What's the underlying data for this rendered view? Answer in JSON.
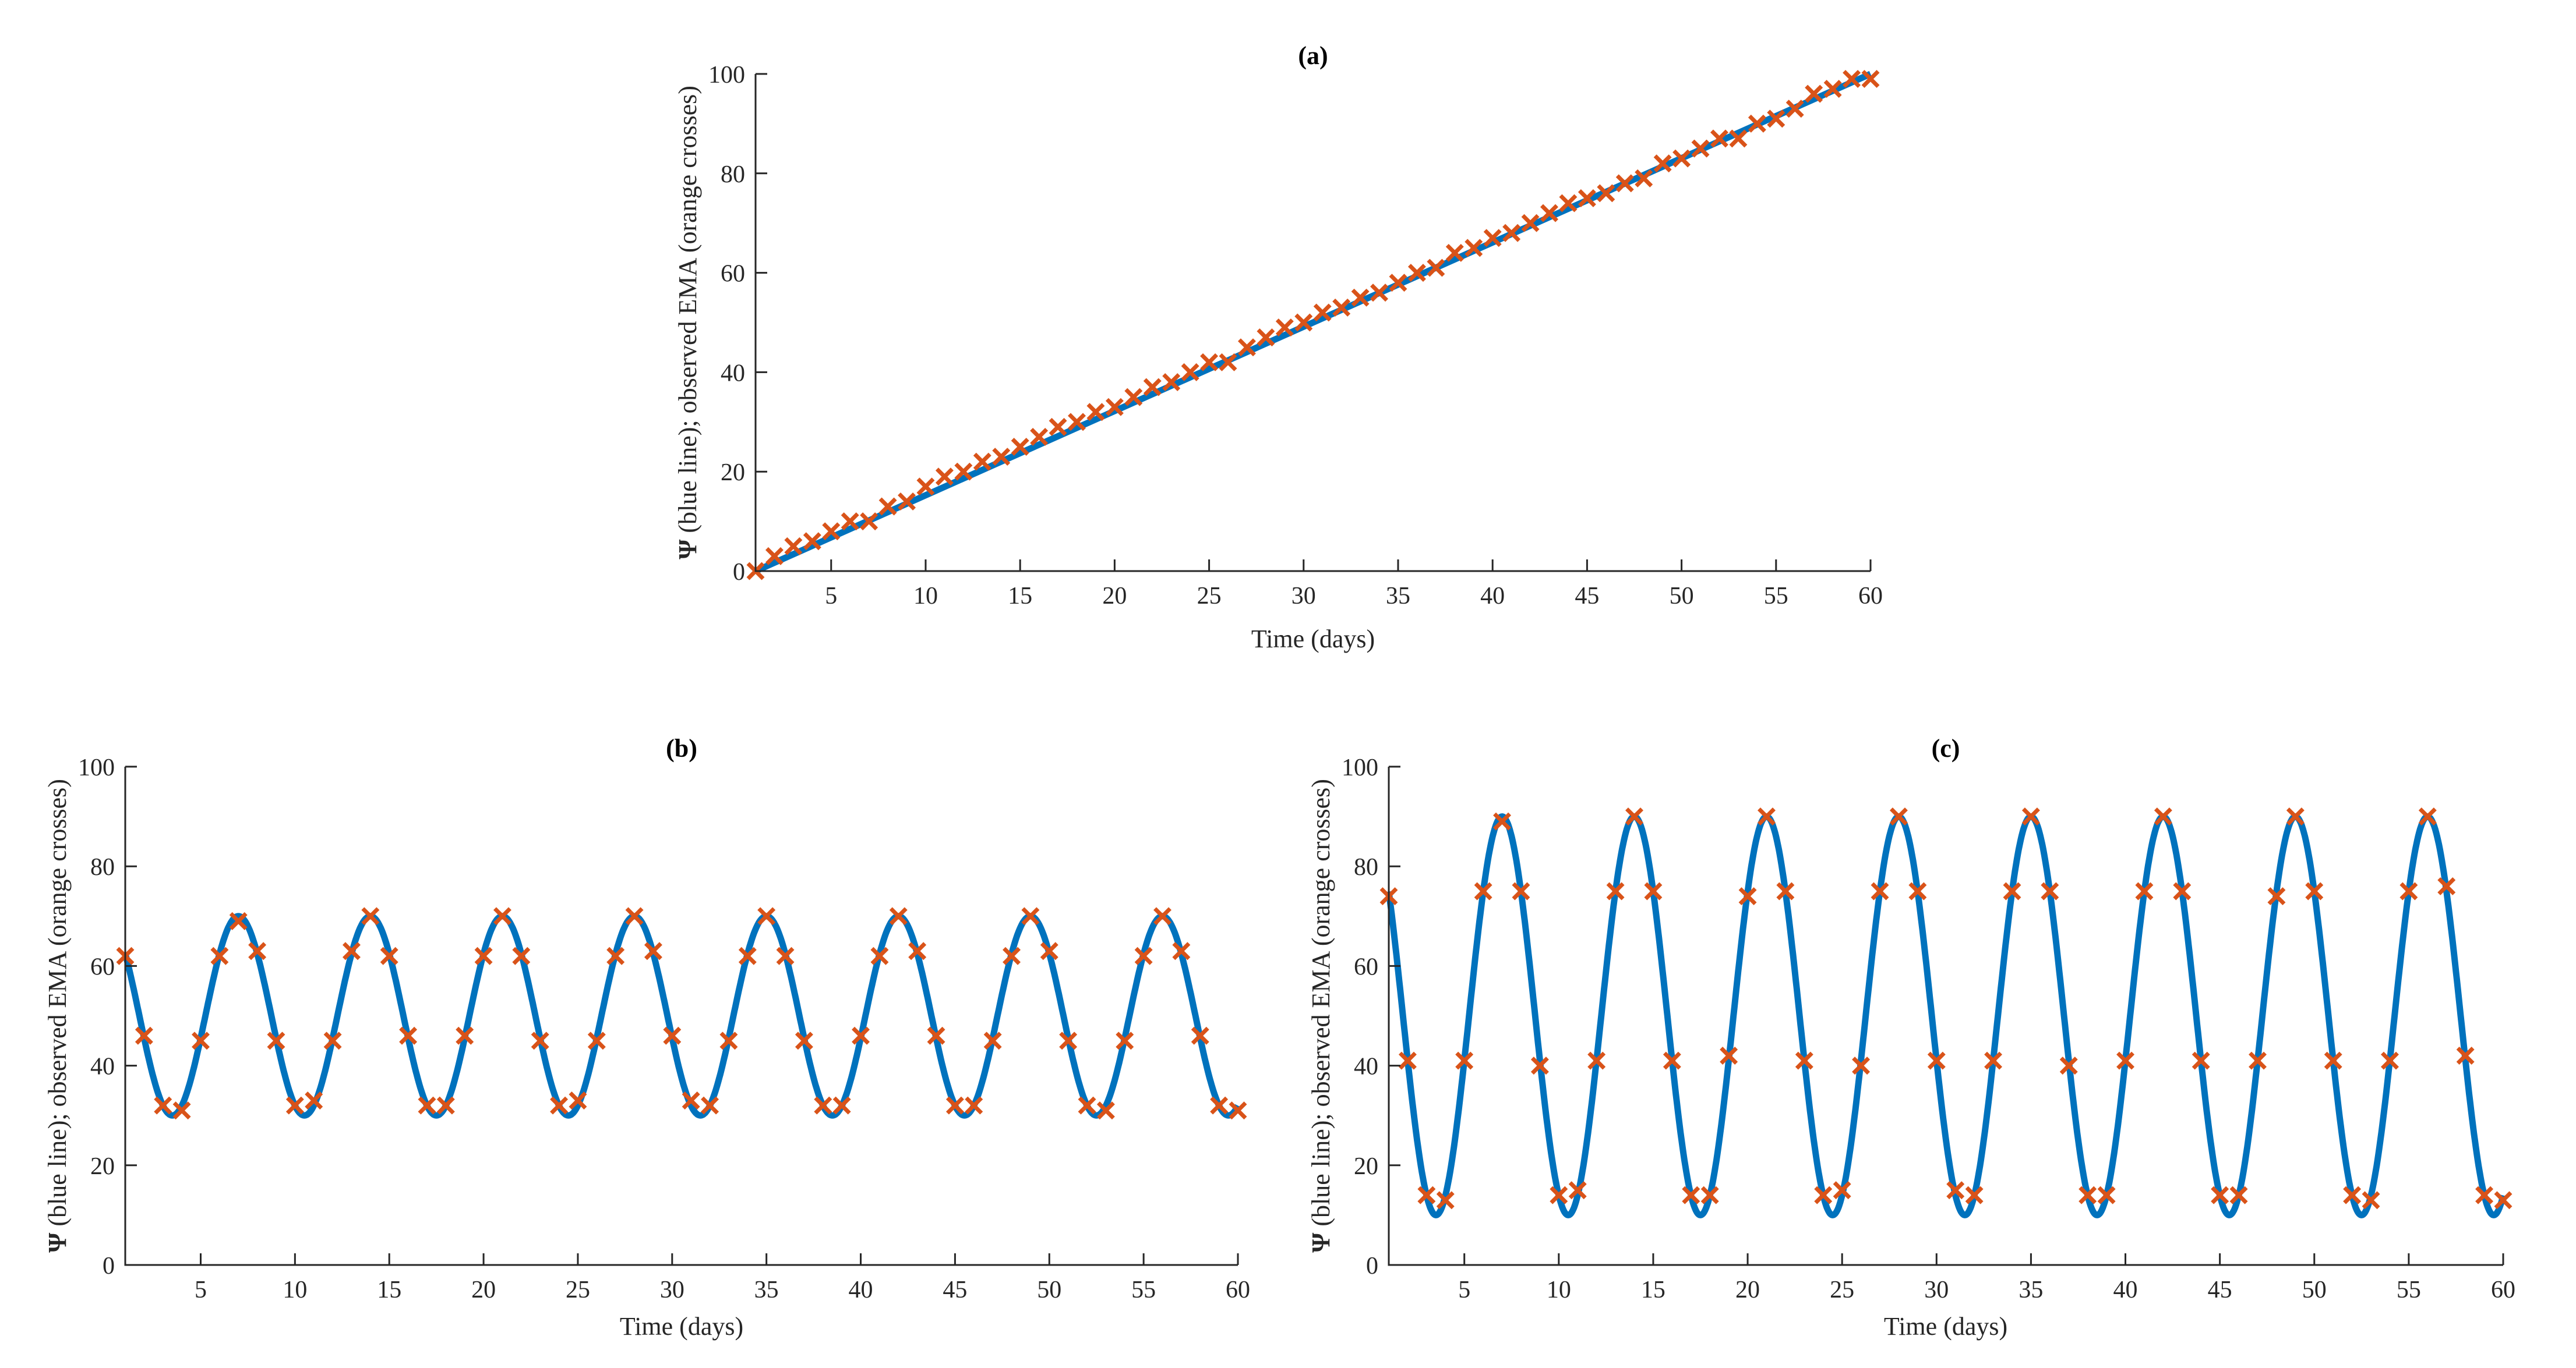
{
  "figure": {
    "line_color": "#0072BD",
    "marker_color": "#D95319",
    "axis_color": "#262626"
  },
  "chart_data": [
    {
      "id": "a",
      "type": "line",
      "title": "(a)",
      "xlabel": "Time (days)",
      "ylabel_symbol": "Ψ",
      "ylabel": " (blue line); observed EMA (orange crosses)",
      "xlim": [
        1,
        60
      ],
      "ylim": [
        0,
        100
      ],
      "xticks": [
        5,
        10,
        15,
        20,
        25,
        30,
        35,
        40,
        45,
        50,
        55,
        60
      ],
      "yticks": [
        0,
        20,
        40,
        60,
        80,
        100
      ],
      "grid": false,
      "legend": null,
      "series": [
        {
          "name": "Ψ (blue line)",
          "kind": "line",
          "model": "linear",
          "from": [
            1,
            0
          ],
          "to": [
            60,
            100
          ]
        },
        {
          "name": "observed EMA (orange crosses)",
          "kind": "markers",
          "x": [
            1,
            2,
            3,
            4,
            5,
            6,
            7,
            8,
            9,
            10,
            11,
            12,
            13,
            14,
            15,
            16,
            17,
            18,
            19,
            20,
            21,
            22,
            23,
            24,
            25,
            26,
            27,
            28,
            29,
            30,
            31,
            32,
            33,
            34,
            35,
            36,
            37,
            38,
            39,
            40,
            41,
            42,
            43,
            44,
            45,
            46,
            47,
            48,
            49,
            50,
            51,
            52,
            53,
            54,
            55,
            56,
            57,
            58,
            59,
            60
          ],
          "y": [
            0,
            3,
            5,
            6,
            8,
            10,
            10,
            13,
            14,
            17,
            19,
            20,
            22,
            23,
            25,
            27,
            29,
            30,
            32,
            33,
            35,
            37,
            38,
            40,
            42,
            42,
            45,
            47,
            49,
            50,
            52,
            53,
            55,
            56,
            58,
            60,
            61,
            64,
            65,
            67,
            68,
            70,
            72,
            74,
            75,
            76,
            78,
            79,
            82,
            83,
            85,
            87,
            87,
            90,
            91,
            93,
            96,
            97,
            99,
            99
          ]
        }
      ]
    },
    {
      "id": "b",
      "type": "line",
      "title": "(b)",
      "xlabel": "Time (days)",
      "ylabel_symbol": "Ψ",
      "ylabel": " (blue line); observed EMA (orange crosses)",
      "xlim": [
        1,
        60
      ],
      "ylim": [
        0,
        100
      ],
      "xticks": [
        5,
        10,
        15,
        20,
        25,
        30,
        35,
        40,
        45,
        50,
        55,
        60
      ],
      "yticks": [
        0,
        20,
        40,
        60,
        80,
        100
      ],
      "grid": false,
      "legend": null,
      "series": [
        {
          "name": "Ψ (blue line)",
          "kind": "line",
          "model": "sinusoid",
          "mean": 50,
          "amplitude": 20,
          "period": 7,
          "peak_at": 7
        },
        {
          "name": "observed EMA (orange crosses)",
          "kind": "markers",
          "x": [
            1,
            2,
            3,
            4,
            5,
            6,
            7,
            8,
            9,
            10,
            11,
            12,
            13,
            14,
            15,
            16,
            17,
            18,
            19,
            20,
            21,
            22,
            23,
            24,
            25,
            26,
            27,
            28,
            29,
            30,
            31,
            32,
            33,
            34,
            35,
            36,
            37,
            38,
            39,
            40,
            41,
            42,
            43,
            44,
            45,
            46,
            47,
            48,
            49,
            50,
            51,
            52,
            53,
            54,
            55,
            56,
            57,
            58,
            59,
            60
          ],
          "y": [
            62,
            46,
            32,
            31,
            45,
            62,
            69,
            63,
            45,
            32,
            33,
            45,
            63,
            70,
            62,
            46,
            32,
            32,
            46,
            62,
            70,
            62,
            45,
            32,
            33,
            45,
            62,
            70,
            63,
            46,
            33,
            32,
            45,
            62,
            70,
            62,
            45,
            32,
            32,
            46,
            62,
            70,
            63,
            46,
            32,
            32,
            45,
            62,
            70,
            63,
            45,
            32,
            31,
            45,
            62,
            70,
            63,
            46,
            32,
            31
          ]
        }
      ]
    },
    {
      "id": "c",
      "type": "line",
      "title": "(c)",
      "xlabel": "Time (days)",
      "ylabel_symbol": "Ψ",
      "ylabel": " (blue line); observed EMA (orange crosses)",
      "xlim": [
        1,
        60
      ],
      "ylim": [
        0,
        100
      ],
      "xticks": [
        5,
        10,
        15,
        20,
        25,
        30,
        35,
        40,
        45,
        50,
        55,
        60
      ],
      "yticks": [
        0,
        20,
        40,
        60,
        80,
        100
      ],
      "grid": false,
      "legend": null,
      "series": [
        {
          "name": "Ψ (blue line)",
          "kind": "line",
          "model": "sinusoid",
          "mean": 50,
          "amplitude": 40,
          "period": 7,
          "peak_at": 7
        },
        {
          "name": "observed EMA (orange crosses)",
          "kind": "markers",
          "x": [
            1,
            2,
            3,
            4,
            5,
            6,
            7,
            8,
            9,
            10,
            11,
            12,
            13,
            14,
            15,
            16,
            17,
            18,
            19,
            20,
            21,
            22,
            23,
            24,
            25,
            26,
            27,
            28,
            29,
            30,
            31,
            32,
            33,
            34,
            35,
            36,
            37,
            38,
            39,
            40,
            41,
            42,
            43,
            44,
            45,
            46,
            47,
            48,
            49,
            50,
            51,
            52,
            53,
            54,
            55,
            56,
            57,
            58,
            59,
            60
          ],
          "y": [
            74,
            41,
            14,
            13,
            41,
            75,
            89,
            75,
            40,
            14,
            15,
            41,
            75,
            90,
            75,
            41,
            14,
            14,
            42,
            74,
            90,
            75,
            41,
            14,
            15,
            40,
            75,
            90,
            75,
            41,
            15,
            14,
            41,
            75,
            90,
            75,
            40,
            14,
            14,
            41,
            75,
            90,
            75,
            41,
            14,
            14,
            41,
            74,
            90,
            75,
            41,
            14,
            13,
            41,
            75,
            90,
            76,
            42,
            14,
            13
          ]
        }
      ]
    }
  ]
}
